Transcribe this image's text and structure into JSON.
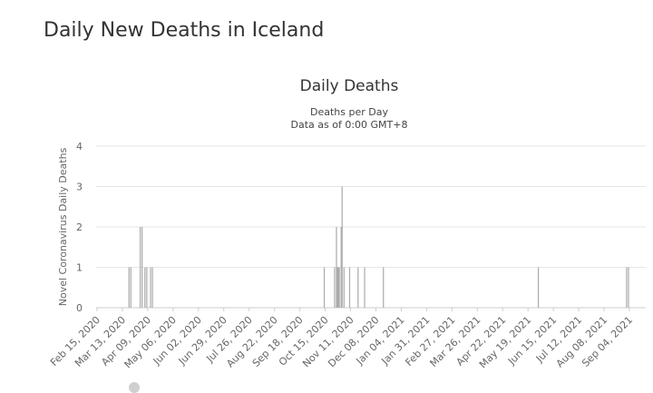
{
  "page": {
    "title": "Daily New Deaths in Iceland"
  },
  "chart_data": {
    "type": "bar",
    "title": "Daily Deaths",
    "subtitle_lines": [
      "Deaths per Day",
      "Data as of 0:00 GMT+8"
    ],
    "ylabel": "Novel Coronavirus Daily Deaths",
    "xlabel": "",
    "ylim": [
      0,
      4
    ],
    "yticks": [
      "0",
      "1",
      "2",
      "3",
      "4"
    ],
    "x_start": "2020-02-15",
    "x_end": "2021-09-04",
    "x_tick_labels": [
      "Feb 15, 2020",
      "Mar 13, 2020",
      "Apr 09, 2020",
      "May 06, 2020",
      "Jun 02, 2020",
      "Jun 29, 2020",
      "Jul 26, 2020",
      "Aug 22, 2020",
      "Sep 18, 2020",
      "Oct 15, 2020",
      "Nov 11, 2020",
      "Dec 08, 2020",
      "Jan 04, 2021",
      "Jan 31, 2021",
      "Feb 27, 2021",
      "Mar 26, 2021",
      "Apr 22, 2021",
      "May 19, 2021",
      "Jun 15, 2021",
      "Jul 12, 2021",
      "Aug 08, 2021",
      "Sep 04, 2021"
    ],
    "grid": true,
    "bar_color": "#aaaaaa",
    "points": [
      {
        "date": "2020-03-20",
        "value": 1
      },
      {
        "date": "2020-03-22",
        "value": 1
      },
      {
        "date": "2020-04-01",
        "value": 2
      },
      {
        "date": "2020-04-03",
        "value": 2
      },
      {
        "date": "2020-04-06",
        "value": 1
      },
      {
        "date": "2020-04-08",
        "value": 1
      },
      {
        "date": "2020-04-12",
        "value": 1
      },
      {
        "date": "2020-04-14",
        "value": 1
      },
      {
        "date": "2020-10-14",
        "value": 1
      },
      {
        "date": "2020-10-25",
        "value": 1
      },
      {
        "date": "2020-10-27",
        "value": 2
      },
      {
        "date": "2020-10-28",
        "value": 1
      },
      {
        "date": "2020-10-29",
        "value": 1
      },
      {
        "date": "2020-10-30",
        "value": 1
      },
      {
        "date": "2020-11-01",
        "value": 2
      },
      {
        "date": "2020-11-02",
        "value": 3
      },
      {
        "date": "2020-11-04",
        "value": 1
      },
      {
        "date": "2020-11-10",
        "value": 1
      },
      {
        "date": "2020-11-19",
        "value": 1
      },
      {
        "date": "2020-11-26",
        "value": 1
      },
      {
        "date": "2020-12-16",
        "value": 1
      },
      {
        "date": "2021-05-30",
        "value": 1
      },
      {
        "date": "2021-09-01",
        "value": 1
      },
      {
        "date": "2021-09-03",
        "value": 1
      }
    ]
  }
}
